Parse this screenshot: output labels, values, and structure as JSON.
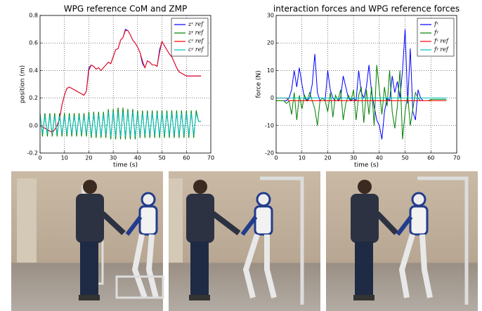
{
  "chart_data": [
    {
      "type": "line",
      "title": "WPG reference CoM and ZMP",
      "x_label": "time (s)",
      "y_label": "position (m)",
      "xlim": [
        0,
        70
      ],
      "xticks": [
        0,
        10,
        20,
        30,
        40,
        50,
        60,
        70
      ],
      "ylim": [
        -0.2,
        0.8
      ],
      "yticks": [
        -0.2,
        {
          "value": 0,
          "label": "0.0"
        },
        0.2,
        0.4,
        0.6,
        0.8
      ],
      "grid": true,
      "legend": "upper right",
      "x": [
        0,
        1,
        2,
        3,
        4,
        5,
        6,
        7,
        8,
        9,
        10,
        11,
        12,
        13,
        14,
        15,
        16,
        17,
        18,
        19,
        20,
        21,
        22,
        23,
        24,
        25,
        26,
        27,
        28,
        29,
        30,
        31,
        32,
        33,
        34,
        35,
        36,
        37,
        38,
        39,
        40,
        41,
        42,
        43,
        44,
        45,
        46,
        47,
        48,
        49,
        50,
        51,
        52,
        53,
        54,
        55,
        56,
        57,
        58,
        59,
        60,
        61,
        62,
        63,
        64,
        65,
        66
      ],
      "series": [
        {
          "name": "zˣ ref",
          "color": "#0000ff",
          "values": [
            0,
            -0.01,
            -0.02,
            -0.03,
            -0.04,
            -0.05,
            -0.03,
            0,
            0.05,
            0.15,
            0.22,
            0.27,
            0.28,
            0.27,
            0.26,
            0.25,
            0.24,
            0.23,
            0.22,
            0.25,
            0.42,
            0.44,
            0.43,
            0.41,
            0.42,
            0.4,
            0.42,
            0.44,
            0.46,
            0.45,
            0.5,
            0.55,
            0.56,
            0.62,
            0.64,
            0.7,
            0.69,
            0.66,
            0.62,
            0.6,
            0.57,
            0.53,
            0.45,
            0.42,
            0.47,
            0.46,
            0.44,
            0.44,
            0.43,
            0.55,
            0.61,
            0.58,
            0.55,
            0.52,
            0.5,
            0.46,
            0.42,
            0.39,
            0.38,
            0.37,
            0.36,
            0.36,
            0.36,
            0.36,
            0.36,
            0.36,
            0.36
          ]
        },
        {
          "name": "zʸ ref",
          "color": "#007f00",
          "values": [
            0.09,
            -0.08,
            0.09,
            -0.08,
            0.09,
            -0.08,
            0.09,
            -0.08,
            0.09,
            -0.08,
            0.09,
            -0.08,
            0.09,
            -0.08,
            0.09,
            -0.08,
            0.09,
            -0.08,
            0.09,
            -0.08,
            0.1,
            -0.09,
            0.1,
            -0.09,
            0.1,
            -0.09,
            0.1,
            -0.09,
            0.12,
            -0.1,
            0.12,
            -0.1,
            0.13,
            -0.1,
            0.13,
            -0.1,
            0.12,
            -0.1,
            0.12,
            -0.1,
            0.11,
            -0.09,
            0.11,
            -0.09,
            0.11,
            -0.09,
            0.11,
            -0.09,
            0.11,
            -0.09,
            0.11,
            -0.09,
            0.11,
            -0.09,
            0.11,
            -0.09,
            0.11,
            -0.09,
            0.11,
            -0.09,
            0.11,
            -0.09,
            0.11,
            -0.09,
            0.11,
            0.03,
            0.03
          ]
        },
        {
          "name": "cˣ ref",
          "color": "#ff0000",
          "values": [
            0,
            -0.01,
            -0.02,
            -0.03,
            -0.04,
            -0.05,
            -0.03,
            0,
            0.05,
            0.15,
            0.22,
            0.27,
            0.28,
            0.27,
            0.26,
            0.25,
            0.24,
            0.23,
            0.22,
            0.25,
            0.4,
            0.44,
            0.43,
            0.41,
            0.42,
            0.4,
            0.42,
            0.44,
            0.46,
            0.45,
            0.5,
            0.55,
            0.56,
            0.62,
            0.64,
            0.69,
            0.69,
            0.66,
            0.62,
            0.6,
            0.57,
            0.53,
            0.47,
            0.42,
            0.47,
            0.46,
            0.44,
            0.44,
            0.43,
            0.53,
            0.61,
            0.58,
            0.55,
            0.52,
            0.5,
            0.46,
            0.42,
            0.39,
            0.38,
            0.37,
            0.36,
            0.36,
            0.36,
            0.36,
            0.36,
            0.36,
            0.36
          ]
        },
        {
          "name": "cʸ ref",
          "color": "#00bfbf",
          "values": [
            0.07,
            -0.06,
            0.07,
            -0.06,
            0.07,
            -0.06,
            0.07,
            -0.06,
            0.07,
            -0.06,
            0.07,
            -0.06,
            0.07,
            -0.06,
            0.07,
            -0.06,
            0.07,
            -0.06,
            0.07,
            -0.06,
            0.08,
            -0.07,
            0.08,
            -0.07,
            0.08,
            -0.07,
            0.08,
            -0.07,
            0.1,
            -0.08,
            0.1,
            -0.08,
            0.1,
            -0.08,
            0.1,
            -0.08,
            0.1,
            -0.08,
            0.1,
            -0.08,
            0.09,
            -0.07,
            0.09,
            -0.07,
            0.09,
            -0.07,
            0.09,
            -0.07,
            0.09,
            -0.07,
            0.09,
            -0.07,
            0.09,
            -0.07,
            0.09,
            -0.07,
            0.09,
            -0.07,
            0.09,
            -0.07,
            0.09,
            -0.07,
            0.09,
            -0.07,
            0.09,
            0.03,
            0.03
          ]
        }
      ]
    },
    {
      "type": "line",
      "title": "interaction forces and WPG reference forces",
      "x_label": "time (s)",
      "y_label": "force (N)",
      "xlim": [
        0,
        70
      ],
      "xticks": [
        0,
        10,
        20,
        30,
        40,
        50,
        60,
        70
      ],
      "ylim": [
        -20,
        30
      ],
      "yticks": [
        -20,
        -10,
        0,
        10,
        20,
        30
      ],
      "grid": true,
      "legend": "upper right",
      "x": [
        0,
        1,
        2,
        3,
        4,
        5,
        6,
        7,
        8,
        9,
        10,
        11,
        12,
        13,
        14,
        15,
        16,
        17,
        18,
        19,
        20,
        21,
        22,
        23,
        24,
        25,
        26,
        27,
        28,
        29,
        30,
        31,
        32,
        33,
        34,
        35,
        36,
        37,
        38,
        39,
        40,
        41,
        42,
        43,
        44,
        45,
        46,
        47,
        48,
        49,
        50,
        51,
        52,
        53,
        54,
        55,
        56,
        57,
        58,
        59,
        60,
        61,
        62,
        63,
        64,
        65,
        66
      ],
      "series": [
        {
          "name": "fˣ",
          "color": "#0000ff",
          "values": [
            -1,
            -1,
            -1,
            -1,
            -1,
            0,
            3,
            10,
            4,
            11,
            5,
            0,
            -1,
            0,
            5,
            16,
            2,
            -1,
            -1,
            -1,
            10,
            3,
            0,
            -1,
            -1,
            0,
            8,
            4,
            0,
            -1,
            0,
            -1,
            10,
            2,
            0,
            4,
            12,
            2,
            -3,
            -8,
            -10,
            -15,
            -5,
            0,
            -1,
            8,
            2,
            6,
            0,
            10,
            25,
            -2,
            18,
            -5,
            -8,
            3,
            0,
            -1,
            -1,
            -1,
            -1,
            -1,
            -1,
            -1,
            -1,
            -1,
            -1
          ]
        },
        {
          "name": "fʸ",
          "color": "#007f00",
          "values": [
            -1,
            -1,
            -1,
            -1,
            -2,
            -1,
            -6,
            2,
            -8,
            1,
            -4,
            1,
            -1,
            2,
            -1,
            -4,
            -10,
            -1,
            0,
            -1,
            -5,
            2,
            -7,
            1,
            -1,
            3,
            -8,
            -2,
            1,
            -1,
            3,
            -8,
            1,
            4,
            -9,
            3,
            -6,
            4,
            -10,
            12,
            3,
            -6,
            4,
            -3,
            10,
            -5,
            -11,
            -3,
            10,
            -15,
            -5,
            1,
            -10,
            -4,
            2,
            0,
            -1,
            -1,
            -1,
            -1,
            -0.5,
            -0.5,
            -0.5,
            -0.5,
            -0.5,
            -0.5,
            -0.5
          ]
        },
        {
          "name": "fˣ ref",
          "color": "#ff0000",
          "values": [
            0,
            0,
            0,
            0,
            0,
            -1,
            -1,
            -1,
            -1,
            -1,
            -1,
            -1,
            -1,
            -1,
            -1,
            -1,
            -1,
            -1,
            -1,
            -1,
            -1,
            -1,
            -1,
            -1,
            -1,
            -1,
            -1,
            -1,
            -1,
            -1,
            -1,
            -1,
            -1,
            -1,
            -1,
            -1,
            -1,
            -1,
            -1,
            -1,
            -1,
            -1,
            -1,
            -1,
            -1,
            -1,
            -1,
            -1,
            -1,
            -1,
            -1,
            -1,
            -1,
            -1,
            -1,
            -1,
            -1,
            -1,
            -1,
            -1,
            -1,
            -1,
            -1,
            -1,
            -1,
            -1,
            -1
          ]
        },
        {
          "name": "fʸ ref",
          "color": "#00bfbf",
          "values": [
            0,
            0,
            0,
            0,
            0,
            0,
            0,
            0,
            0,
            0,
            0,
            0,
            0,
            0,
            0,
            0,
            0,
            0,
            0,
            0,
            0,
            0,
            0,
            0,
            0,
            0,
            0,
            0,
            0,
            0,
            0,
            0,
            0,
            0,
            0,
            0,
            0,
            0,
            0,
            0,
            0,
            0,
            0,
            0,
            0,
            0,
            0,
            0,
            0,
            0,
            0,
            0,
            0,
            0,
            0,
            0,
            0,
            0,
            0,
            0,
            0,
            0,
            0,
            0,
            0,
            0,
            0
          ]
        }
      ]
    }
  ]
}
